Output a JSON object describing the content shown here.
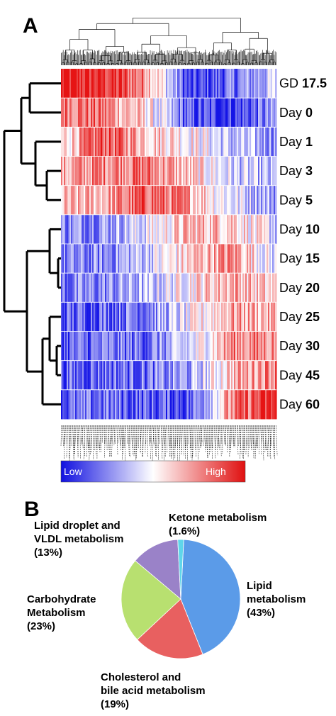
{
  "panels": {
    "a": "A",
    "b": "B"
  },
  "chart_data": [
    {
      "type": "heatmap",
      "rows": [
        {
          "prefix": "GD ",
          "value": "17.5"
        },
        {
          "prefix": "Day ",
          "value": "0"
        },
        {
          "prefix": "Day ",
          "value": "1"
        },
        {
          "prefix": "Day ",
          "value": "3"
        },
        {
          "prefix": "Day ",
          "value": "5"
        },
        {
          "prefix": "Day ",
          "value": "10"
        },
        {
          "prefix": "Day ",
          "value": "15"
        },
        {
          "prefix": "Day ",
          "value": "20"
        },
        {
          "prefix": "Day ",
          "value": "25"
        },
        {
          "prefix": "Day ",
          "value": "30"
        },
        {
          "prefix": "Day ",
          "value": "45"
        },
        {
          "prefix": "Day ",
          "value": "60"
        }
      ],
      "row_profiles": [
        [
          0.95,
          0.9,
          0.5,
          -0.9,
          -0.6,
          -0.2
        ],
        [
          0.65,
          0.55,
          0.1,
          -0.75,
          -0.8,
          -0.5
        ],
        [
          0.1,
          0.75,
          0.3,
          0.1,
          -0.3,
          -0.4
        ],
        [
          0.3,
          0.55,
          0.6,
          0.2,
          -0.2,
          -0.4
        ],
        [
          0.2,
          0.35,
          0.7,
          0.4,
          -0.1,
          -0.4
        ],
        [
          -0.5,
          -0.4,
          -0.1,
          0.3,
          0.3,
          -0.2
        ],
        [
          -0.6,
          -0.5,
          -0.2,
          0.2,
          0.5,
          -0.2
        ],
        [
          -0.6,
          -0.5,
          -0.3,
          0.1,
          0.4,
          0.1
        ],
        [
          -0.7,
          -0.6,
          -0.5,
          -0.1,
          0.4,
          0.3
        ],
        [
          -0.7,
          -0.6,
          -0.6,
          -0.2,
          0.5,
          0.5
        ],
        [
          -0.7,
          -0.6,
          -0.6,
          -0.4,
          0.3,
          0.6
        ],
        [
          -0.7,
          -0.6,
          -0.7,
          -0.7,
          0.5,
          0.9
        ]
      ],
      "legend": {
        "low": "Low",
        "high": "High",
        "colors": [
          "#1010e0",
          "#ffffff",
          "#e01010"
        ]
      }
    },
    {
      "type": "pie",
      "slices": [
        {
          "name": "Lipid metabolism",
          "value": 43,
          "color": "#5b9be8"
        },
        {
          "name": "Cholesterol and bile acid metabolism",
          "value": 19,
          "color": "#e86060"
        },
        {
          "name": "Carbohydrate Metabolism",
          "value": 23,
          "color": "#b8e070"
        },
        {
          "name": "Lipid droplet and VLDL metabolism",
          "value": 13,
          "color": "#9a82c8"
        },
        {
          "name": "Ketone metabolism",
          "value": 1.6,
          "color": "#5fd6ea"
        }
      ],
      "labels": [
        {
          "lines": [
            "Ketone metabolism",
            "(1.6%)"
          ]
        },
        {
          "lines": [
            "Lipid droplet and",
            "VLDL metabolism",
            "(13%)"
          ]
        },
        {
          "lines": [
            "Carbohydrate",
            "Metabolism",
            "(23%)"
          ]
        },
        {
          "lines": [
            "Lipid",
            "metabolism",
            "(43%)"
          ]
        },
        {
          "lines": [
            "Cholesterol and",
            "bile acid metabolism",
            "(19%)"
          ]
        }
      ]
    }
  ]
}
